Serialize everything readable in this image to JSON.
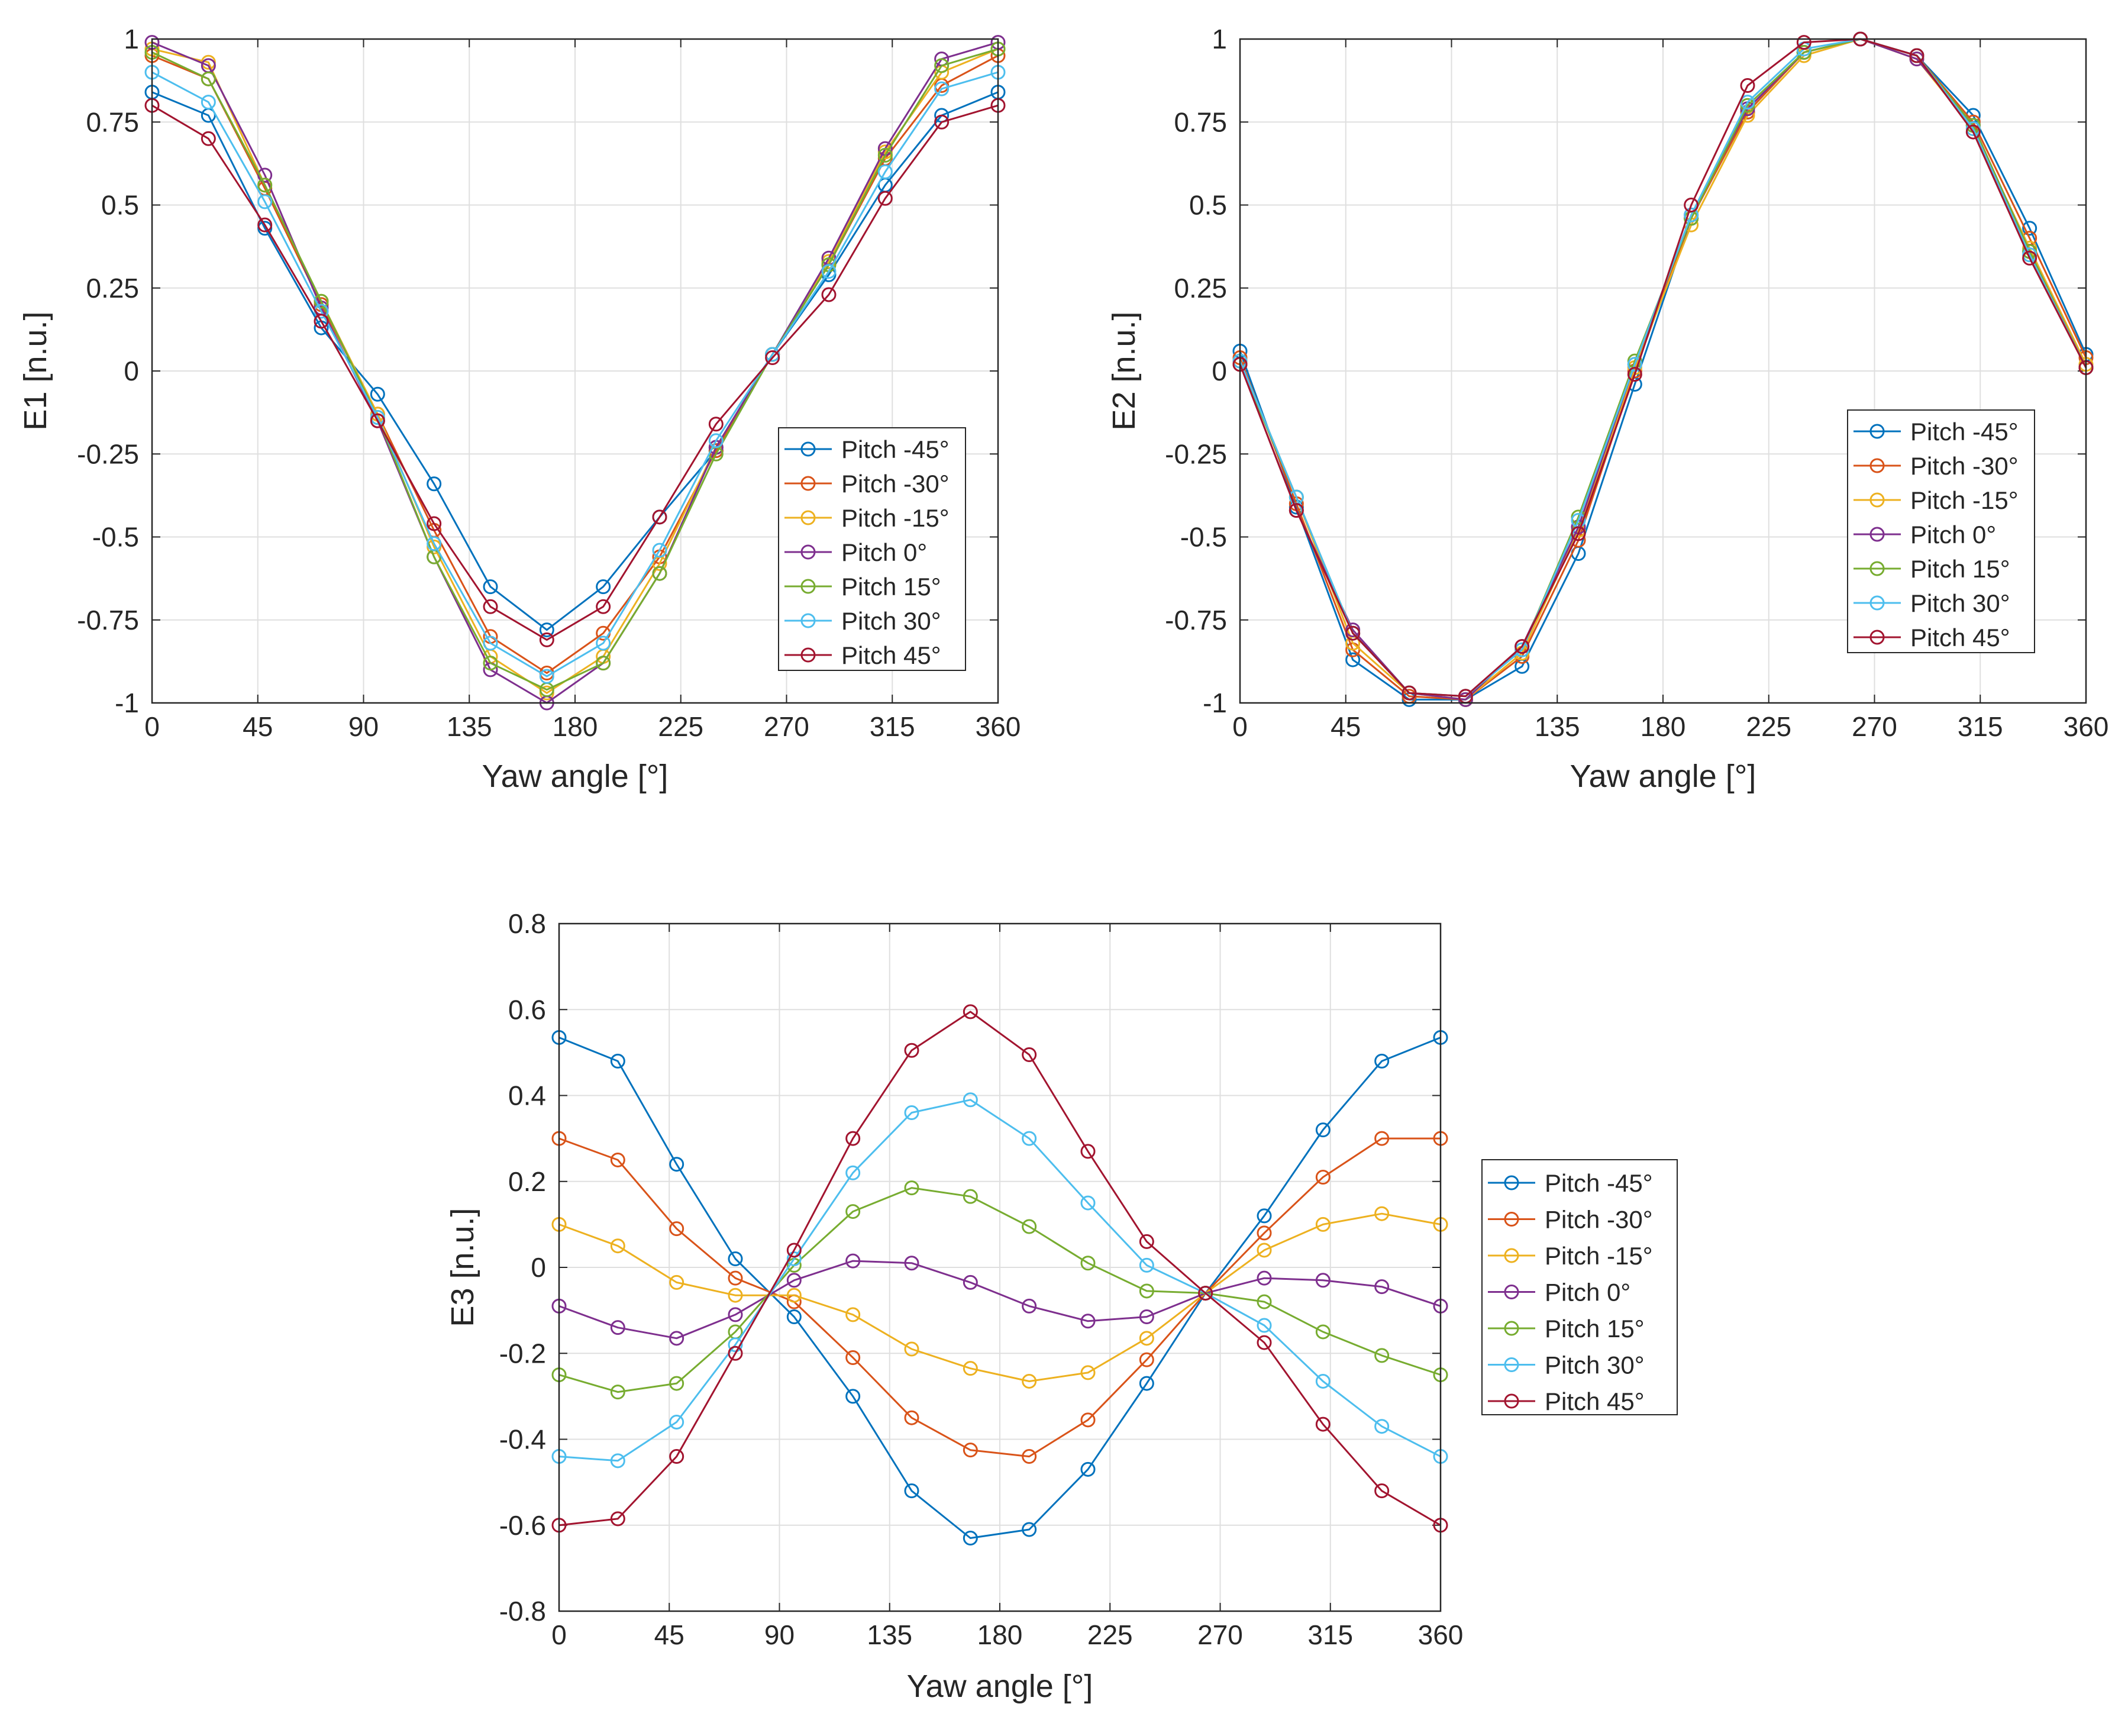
{
  "chart_data": [
    {
      "id": "e1",
      "type": "line",
      "xlabel": "Yaw angle [°]",
      "ylabel": "E1 [n.u.]",
      "xlim": [
        0,
        360
      ],
      "ylim": [
        -1,
        1
      ],
      "xticks": [
        "0",
        "45",
        "90",
        "135",
        "180",
        "225",
        "270",
        "315",
        "360"
      ],
      "yticks": [
        "-1",
        "-0.75",
        "-0.5",
        "-0.25",
        "0",
        "0.25",
        "0.5",
        "0.75",
        "1"
      ],
      "grid": true,
      "legend": "lower-right",
      "x": [
        0,
        24,
        48,
        72,
        96,
        120,
        144,
        168,
        192,
        216,
        240,
        264,
        288,
        312,
        336,
        360
      ],
      "series": [
        {
          "name": "Pitch -45°",
          "color": "#0072BD",
          "values": [
            0.84,
            0.77,
            0.43,
            0.13,
            -0.07,
            -0.34,
            -0.65,
            -0.78,
            -0.65,
            -0.44,
            -0.24,
            0.05,
            0.29,
            0.56,
            0.77,
            0.84
          ]
        },
        {
          "name": "Pitch -30°",
          "color": "#D95319",
          "values": [
            0.95,
            0.88,
            0.55,
            0.2,
            -0.13,
            -0.48,
            -0.8,
            -0.91,
            -0.79,
            -0.56,
            -0.24,
            0.05,
            0.32,
            0.64,
            0.86,
            0.95
          ]
        },
        {
          "name": "Pitch -15°",
          "color": "#EDB120",
          "values": [
            0.97,
            0.93,
            0.56,
            0.21,
            -0.13,
            -0.53,
            -0.86,
            -0.97,
            -0.86,
            -0.58,
            -0.23,
            0.05,
            0.33,
            0.66,
            0.9,
            0.97
          ]
        },
        {
          "name": "Pitch 0°",
          "color": "#7E2F8E",
          "values": [
            0.99,
            0.92,
            0.59,
            0.19,
            -0.15,
            -0.56,
            -0.9,
            -1.0,
            -0.88,
            -0.61,
            -0.23,
            0.05,
            0.34,
            0.67,
            0.94,
            0.99
          ]
        },
        {
          "name": "Pitch 15°",
          "color": "#77AC30",
          "values": [
            0.96,
            0.88,
            0.56,
            0.21,
            -0.14,
            -0.56,
            -0.88,
            -0.96,
            -0.88,
            -0.61,
            -0.25,
            0.05,
            0.32,
            0.65,
            0.92,
            0.97
          ]
        },
        {
          "name": "Pitch 30°",
          "color": "#4DBEEE",
          "values": [
            0.9,
            0.81,
            0.51,
            0.18,
            -0.14,
            -0.52,
            -0.82,
            -0.92,
            -0.82,
            -0.54,
            -0.21,
            0.05,
            0.3,
            0.6,
            0.85,
            0.9
          ]
        },
        {
          "name": "Pitch 45°",
          "color": "#A2142F",
          "values": [
            0.8,
            0.7,
            0.44,
            0.15,
            -0.15,
            -0.46,
            -0.71,
            -0.81,
            -0.71,
            -0.44,
            -0.16,
            0.04,
            0.23,
            0.52,
            0.75,
            0.8
          ]
        }
      ]
    },
    {
      "id": "e2",
      "type": "line",
      "xlabel": "Yaw angle [°]",
      "ylabel": "E2 [n.u.]",
      "xlim": [
        0,
        360
      ],
      "ylim": [
        -1,
        1
      ],
      "xticks": [
        "0",
        "45",
        "90",
        "135",
        "180",
        "225",
        "270",
        "315",
        "360"
      ],
      "yticks": [
        "-1",
        "-0.75",
        "-0.5",
        "-0.25",
        "0",
        "0.25",
        "0.5",
        "0.75",
        "1"
      ],
      "grid": true,
      "legend": "right",
      "x": [
        0,
        24,
        48,
        72,
        96,
        120,
        144,
        168,
        192,
        216,
        240,
        264,
        288,
        312,
        336,
        360
      ],
      "series": [
        {
          "name": "Pitch -45°",
          "color": "#0072BD",
          "values": [
            0.06,
            -0.41,
            -0.87,
            -0.99,
            -0.99,
            -0.89,
            -0.55,
            -0.04,
            0.46,
            0.78,
            0.96,
            1.0,
            0.95,
            0.77,
            0.43,
            0.05
          ]
        },
        {
          "name": "Pitch -30°",
          "color": "#D95319",
          "values": [
            0.04,
            -0.4,
            -0.84,
            -0.98,
            -0.99,
            -0.86,
            -0.51,
            0.0,
            0.46,
            0.78,
            0.96,
            1.0,
            0.95,
            0.75,
            0.4,
            0.04
          ]
        },
        {
          "name": "Pitch -15°",
          "color": "#EDB120",
          "values": [
            0.03,
            -0.38,
            -0.82,
            -0.97,
            -0.99,
            -0.85,
            -0.48,
            0.01,
            0.44,
            0.77,
            0.95,
            1.0,
            0.94,
            0.73,
            0.37,
            0.02
          ]
        },
        {
          "name": "Pitch 0°",
          "color": "#7E2F8E",
          "values": [
            0.02,
            -0.42,
            -0.78,
            -0.97,
            -0.99,
            -0.83,
            -0.47,
            0.02,
            0.47,
            0.79,
            0.96,
            1.0,
            0.94,
            0.74,
            0.36,
            0.01
          ]
        },
        {
          "name": "Pitch 15°",
          "color": "#77AC30",
          "values": [
            0.02,
            -0.38,
            -0.79,
            -0.97,
            -0.98,
            -0.84,
            -0.44,
            0.03,
            0.46,
            0.8,
            0.96,
            1.0,
            0.95,
            0.74,
            0.36,
            0.01
          ]
        },
        {
          "name": "Pitch 30°",
          "color": "#4DBEEE",
          "values": [
            0.03,
            -0.38,
            -0.79,
            -0.97,
            -0.98,
            -0.84,
            -0.45,
            0.02,
            0.47,
            0.81,
            0.97,
            1.0,
            0.95,
            0.73,
            0.35,
            0.01
          ]
        },
        {
          "name": "Pitch 45°",
          "color": "#A2142F",
          "values": [
            0.02,
            -0.42,
            -0.79,
            -0.97,
            -0.98,
            -0.83,
            -0.49,
            -0.01,
            0.5,
            0.86,
            0.99,
            1.0,
            0.95,
            0.72,
            0.34,
            0.01
          ]
        }
      ]
    },
    {
      "id": "e3",
      "type": "line",
      "xlabel": "Yaw angle [°]",
      "ylabel": "E3 [n.u.]",
      "xlim": [
        0,
        360
      ],
      "ylim": [
        -0.8,
        0.8
      ],
      "xticks": [
        "0",
        "45",
        "90",
        "135",
        "180",
        "225",
        "270",
        "315",
        "360"
      ],
      "yticks": [
        "-0.8",
        "-0.6",
        "-0.4",
        "-0.2",
        "0",
        "0.2",
        "0.4",
        "0.6",
        "0.8"
      ],
      "grid": true,
      "legend": "outside-right",
      "x": [
        0,
        24,
        48,
        72,
        96,
        120,
        144,
        168,
        192,
        216,
        240,
        264,
        288,
        312,
        336,
        360
      ],
      "series": [
        {
          "name": "Pitch -45°",
          "color": "#0072BD",
          "values": [
            0.535,
            0.48,
            0.24,
            0.02,
            -0.115,
            -0.3,
            -0.52,
            -0.63,
            -0.61,
            -0.47,
            -0.27,
            -0.06,
            0.12,
            0.32,
            0.48,
            0.535
          ]
        },
        {
          "name": "Pitch -30°",
          "color": "#D95319",
          "values": [
            0.3,
            0.25,
            0.09,
            -0.025,
            -0.08,
            -0.21,
            -0.35,
            -0.425,
            -0.44,
            -0.355,
            -0.215,
            -0.06,
            0.08,
            0.21,
            0.3,
            0.3
          ]
        },
        {
          "name": "Pitch -15°",
          "color": "#EDB120",
          "values": [
            0.1,
            0.05,
            -0.035,
            -0.065,
            -0.065,
            -0.11,
            -0.19,
            -0.235,
            -0.265,
            -0.245,
            -0.165,
            -0.06,
            0.04,
            0.1,
            0.125,
            0.1
          ]
        },
        {
          "name": "Pitch 0°",
          "color": "#7E2F8E",
          "values": [
            -0.09,
            -0.14,
            -0.165,
            -0.11,
            -0.03,
            0.015,
            0.01,
            -0.035,
            -0.09,
            -0.125,
            -0.115,
            -0.06,
            -0.025,
            -0.03,
            -0.045,
            -0.09
          ]
        },
        {
          "name": "Pitch 15°",
          "color": "#77AC30",
          "values": [
            -0.25,
            -0.29,
            -0.27,
            -0.15,
            0.005,
            0.13,
            0.185,
            0.165,
            0.095,
            0.01,
            -0.055,
            -0.06,
            -0.08,
            -0.15,
            -0.205,
            -0.25
          ]
        },
        {
          "name": "Pitch 30°",
          "color": "#4DBEEE",
          "values": [
            -0.44,
            -0.45,
            -0.36,
            -0.18,
            0.02,
            0.22,
            0.36,
            0.39,
            0.3,
            0.15,
            0.005,
            -0.06,
            -0.135,
            -0.265,
            -0.37,
            -0.44
          ]
        },
        {
          "name": "Pitch 45°",
          "color": "#A2142F",
          "values": [
            -0.6,
            -0.585,
            -0.44,
            -0.2,
            0.04,
            0.3,
            0.505,
            0.595,
            0.495,
            0.27,
            0.06,
            -0.06,
            -0.175,
            -0.365,
            -0.52,
            -0.6
          ]
        }
      ]
    }
  ]
}
